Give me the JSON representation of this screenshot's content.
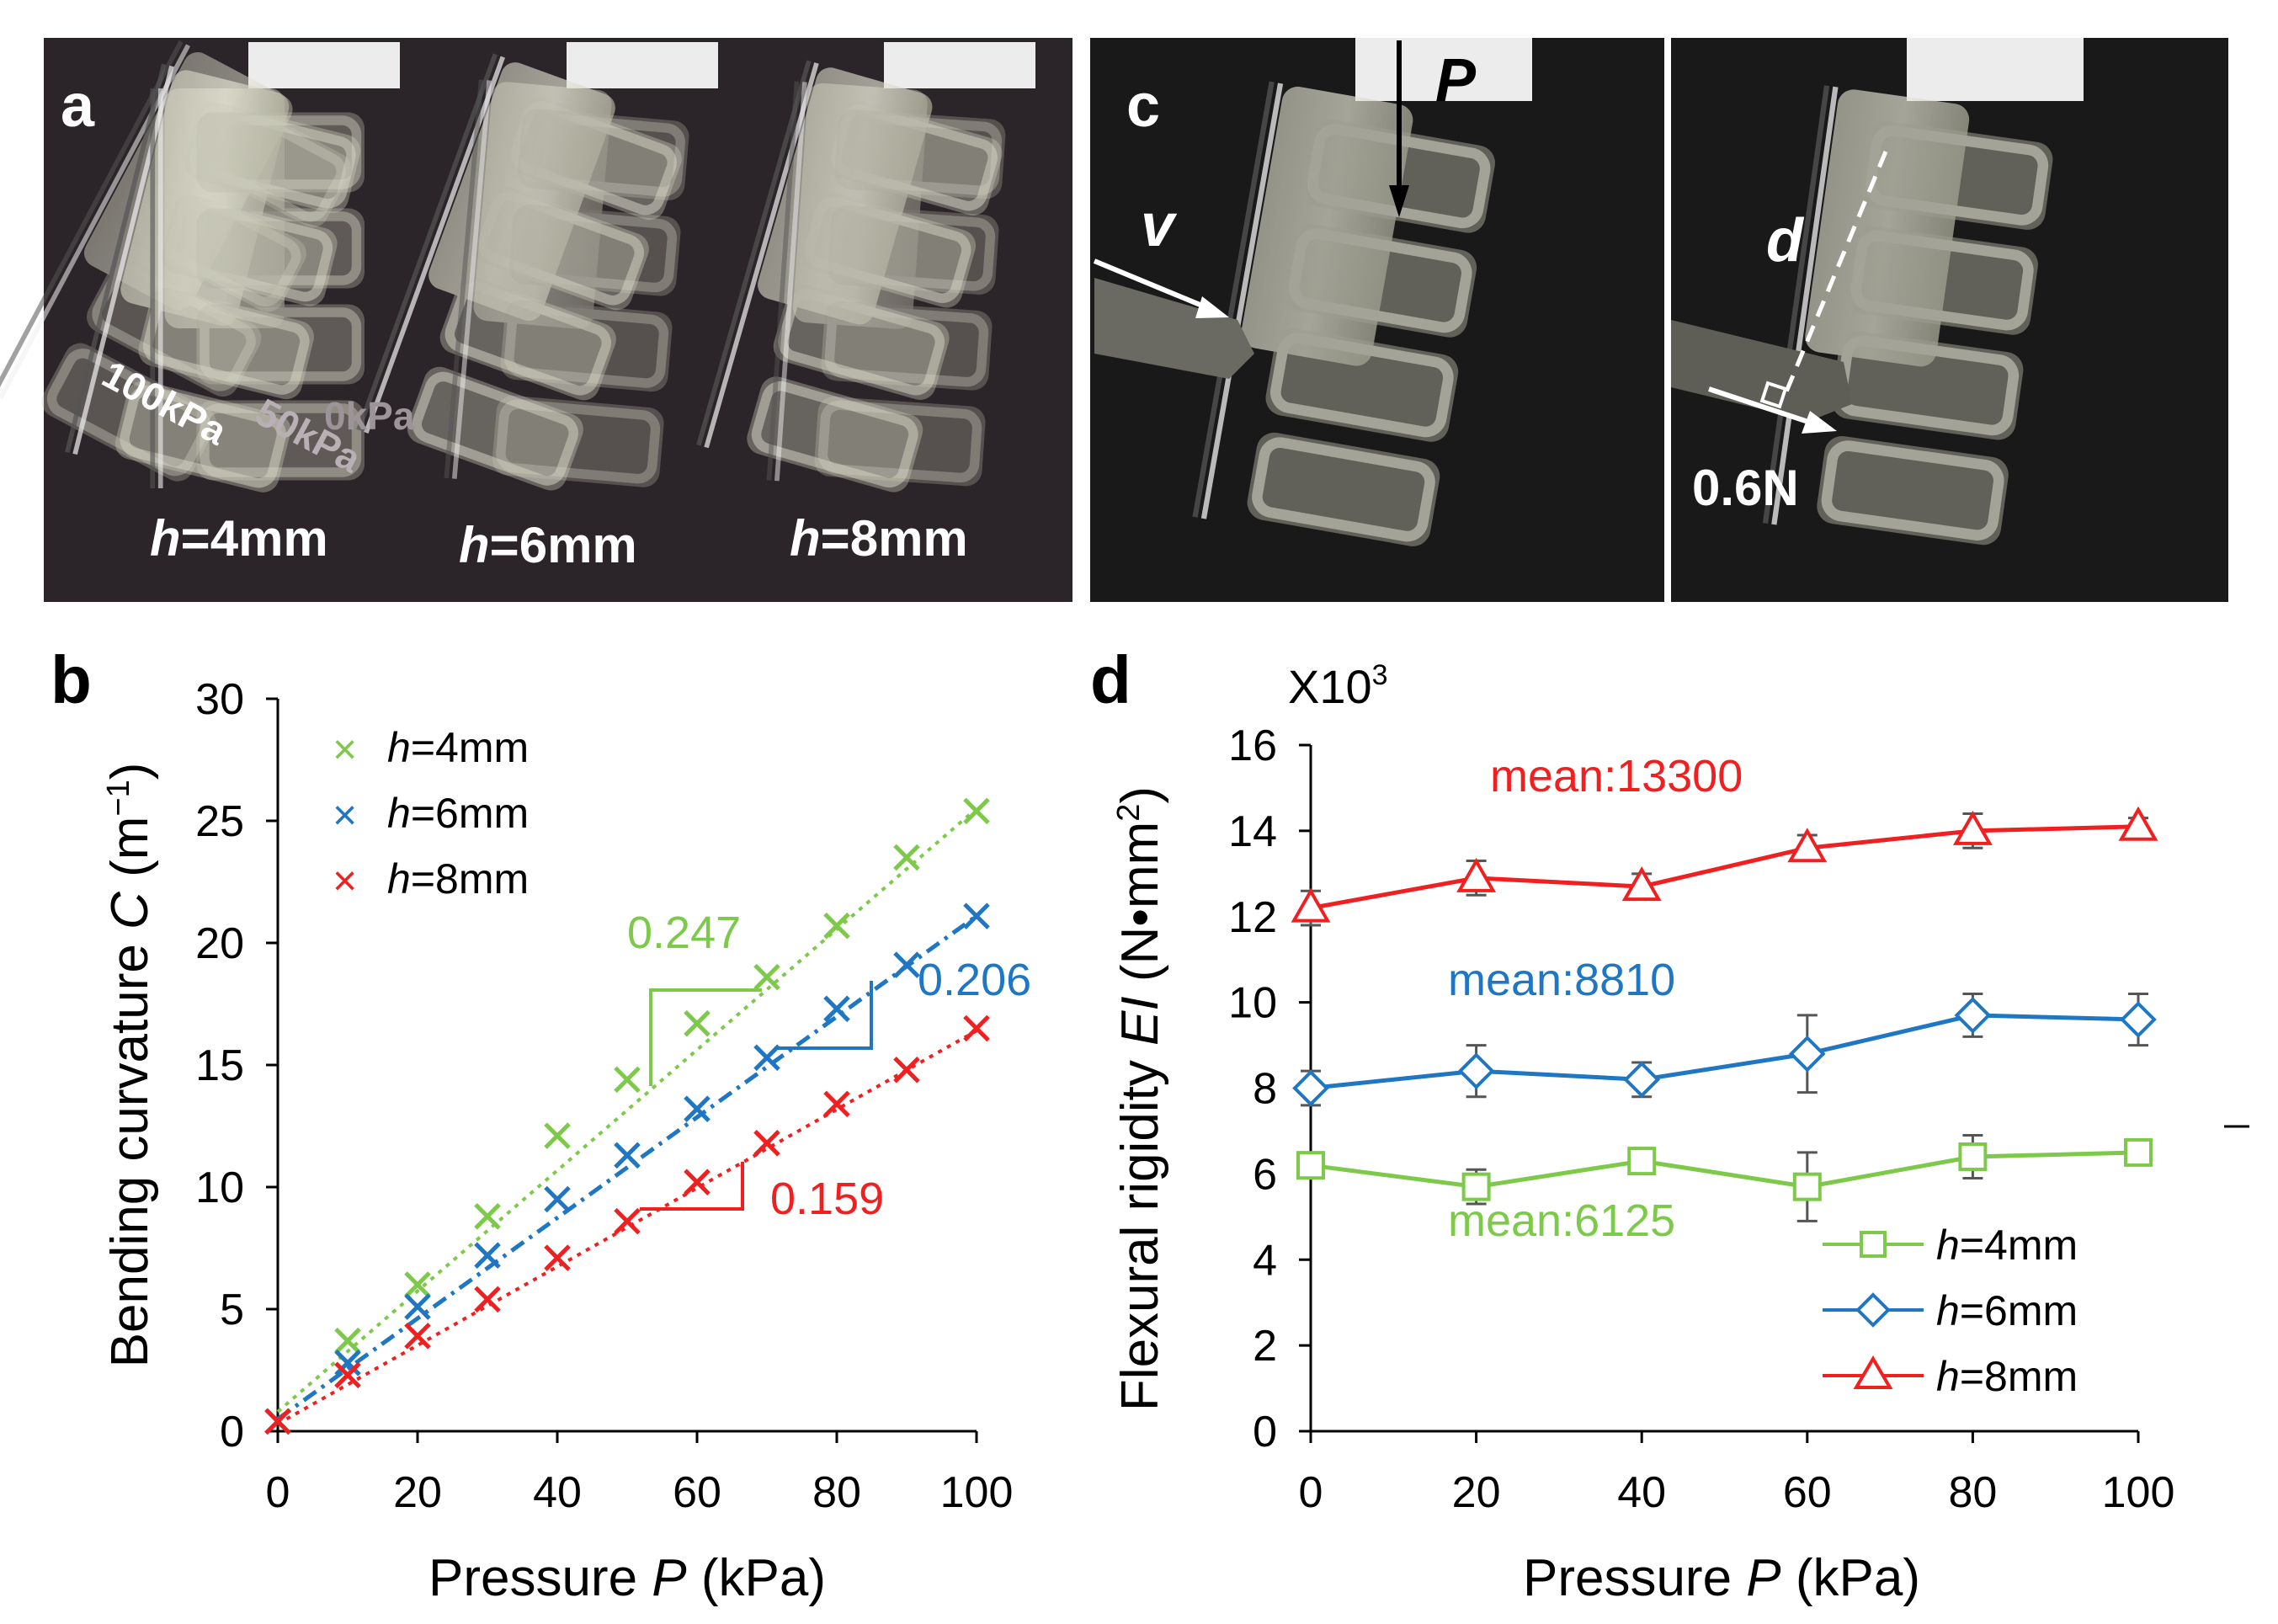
{
  "panels": {
    "a": {
      "letter": "a",
      "pressure_labels": [
        "100kPa",
        "50kPa",
        "0kPa"
      ],
      "h_var": "h",
      "h_values": [
        "=4mm",
        "=6mm",
        "=8mm"
      ]
    },
    "c": {
      "letter": "c",
      "P": "P",
      "v": "v",
      "d": "d",
      "force": "0.6N"
    },
    "b": {
      "letter": "b"
    },
    "d": {
      "letter": "d"
    }
  },
  "chart_data": [
    {
      "id": "b",
      "type": "scatter",
      "title": "",
      "xlabel_pre": "Pressure ",
      "xlabel_var": "P",
      "xlabel_post": " (kPa)",
      "ylabel_pre": "Bending curvature ",
      "ylabel_var": "C",
      "ylabel_post": " (m",
      "ylabel_sup": "−1",
      "ylabel_end": ")",
      "xlim": [
        0,
        100
      ],
      "ylim": [
        0,
        30
      ],
      "xticks": [
        "0",
        "20",
        "40",
        "60",
        "80",
        "100"
      ],
      "yticks": [
        "0",
        "5",
        "10",
        "15",
        "20",
        "25",
        "30"
      ],
      "x": [
        0,
        10,
        20,
        30,
        40,
        50,
        60,
        70,
        80,
        90,
        100
      ],
      "series": [
        {
          "name_var": "h",
          "name_rest": "=4mm",
          "color": "#7dc94a",
          "values": [
            0.4,
            3.7,
            6.0,
            8.8,
            12.1,
            14.4,
            16.7,
            18.6,
            20.7,
            23.5,
            25.4
          ],
          "fit": [
            0.8,
            25.5
          ],
          "slope_label": "0.247"
        },
        {
          "name_var": "h",
          "name_rest": "=6mm",
          "color": "#1f77c4",
          "values": [
            0.4,
            2.8,
            5.1,
            7.2,
            9.5,
            11.3,
            13.2,
            15.3,
            17.3,
            19.1,
            21.1
          ],
          "fit": [
            0.5,
            21.1
          ],
          "slope_label": "0.206"
        },
        {
          "name_var": "h",
          "name_rest": "=8mm",
          "color": "#f02020",
          "values": [
            0.4,
            2.3,
            3.9,
            5.4,
            7.1,
            8.6,
            10.2,
            11.8,
            13.4,
            14.8,
            16.5
          ],
          "fit": [
            0.3,
            16.4
          ],
          "slope_label": "0.159"
        }
      ],
      "legend": "top-left"
    },
    {
      "id": "d",
      "type": "line",
      "multiplier": "X10",
      "multiplier_exp": "3",
      "xlabel_pre": "Pressure ",
      "xlabel_var": "P",
      "xlabel_post": " (kPa)",
      "ylabel_pre": "Flexural rigidity ",
      "ylabel_var": "EI",
      "ylabel_post": " (N•mm",
      "ylabel_sup": "2",
      "ylabel_end": ")",
      "xlim": [
        0,
        100
      ],
      "ylim": [
        0,
        16
      ],
      "xticks": [
        "0",
        "20",
        "40",
        "60",
        "80",
        "100"
      ],
      "yticks": [
        "0",
        "2",
        "4",
        "6",
        "8",
        "10",
        "12",
        "14",
        "16"
      ],
      "x": [
        0,
        20,
        40,
        60,
        80,
        100
      ],
      "series": [
        {
          "name_var": "h",
          "name_rest": "=4mm",
          "color": "#7dc94a",
          "marker": "square",
          "values": [
            6.2,
            5.7,
            6.3,
            5.7,
            6.4,
            6.5
          ],
          "errors": [
            0.3,
            0.4,
            0.3,
            0.8,
            0.5,
            0.2
          ],
          "mean_label": "mean:6125"
        },
        {
          "name_var": "h",
          "name_rest": "=6mm",
          "color": "#1f77c4",
          "marker": "diamond",
          "values": [
            8.0,
            8.4,
            8.2,
            8.8,
            9.7,
            9.6
          ],
          "errors": [
            0.4,
            0.6,
            0.4,
            0.9,
            0.5,
            0.6
          ],
          "mean_label": "mean:8810"
        },
        {
          "name_var": "h",
          "name_rest": "=8mm",
          "color": "#f02020",
          "marker": "triangle",
          "values": [
            12.2,
            12.9,
            12.7,
            13.6,
            14.0,
            14.1
          ],
          "errors": [
            0.4,
            0.4,
            0.3,
            0.3,
            0.4,
            0.2
          ],
          "mean_label": "mean:13300"
        }
      ],
      "legend": "bottom-right"
    }
  ]
}
